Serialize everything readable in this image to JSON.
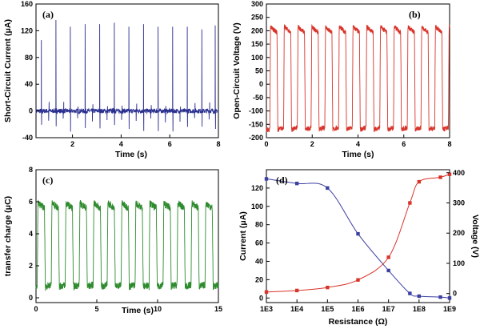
{
  "colors": {
    "panel_a": "#2a2f8f",
    "panel_b": "#d8342a",
    "panel_c": "#2e8b2e",
    "current": "#3b3fa0",
    "voltage": "#d8342a"
  },
  "chart_data": [
    {
      "type": "line",
      "panel_label": "(a)",
      "xlabel": "Time (s)",
      "ylabel": "Short-Circuit Current (μA)",
      "xlim": [
        0.5,
        8
      ],
      "ylim": [
        -40,
        160
      ],
      "xticks": [
        2,
        4,
        6,
        8
      ],
      "xtick_labels": [
        "2",
        "4",
        "6",
        "8"
      ],
      "yticks": [
        -40,
        0,
        40,
        80,
        120,
        160
      ],
      "ytick_labels": [
        "-40",
        "0",
        "40",
        "80",
        "120",
        "160"
      ],
      "series": [
        {
          "peak_times": [
            0.72,
            1.32,
            1.91,
            2.52,
            3.12,
            3.72,
            4.32,
            4.92,
            5.52,
            6.12,
            6.72,
            7.32,
            7.87
          ],
          "peak_values": [
            106,
            136,
            126,
            130,
            130,
            132,
            126,
            130,
            126,
            126,
            126,
            122,
            128
          ],
          "baseline": 0,
          "dip_value": -25
        }
      ],
      "grid": false
    },
    {
      "type": "line",
      "panel_label": "(b)",
      "xlabel": "Time (s)",
      "ylabel": "Open-Circuit Voltage (V)",
      "xlim": [
        0,
        8
      ],
      "ylim": [
        -200,
        300
      ],
      "xticks": [
        0,
        2,
        4,
        6,
        8
      ],
      "xtick_labels": [
        "0",
        "2",
        "4",
        "6",
        "8"
      ],
      "yticks": [
        -200,
        -150,
        -100,
        -50,
        0,
        50,
        100,
        150,
        200,
        250,
        300
      ],
      "ytick_labels": [
        "-200",
        "-150",
        "-100",
        "-50",
        "0",
        "50",
        "100",
        "150",
        "200",
        "250",
        "300"
      ],
      "series": [
        {
          "period_s": 0.6,
          "cycles": 13,
          "start_s": 0.15,
          "high_value": 215,
          "low_value": -170
        }
      ],
      "grid": false
    },
    {
      "type": "line",
      "panel_label": "(c)",
      "xlabel": "Time (s)",
      "ylabel": "transfer charge (μC)",
      "xlim": [
        0,
        15
      ],
      "ylim": [
        -0.3,
        8
      ],
      "xticks": [
        0,
        5,
        10,
        15
      ],
      "xtick_labels": [
        "0",
        "5",
        "10",
        "15"
      ],
      "yticks": [
        0,
        2,
        4,
        6,
        8
      ],
      "ytick_labels": [
        "0",
        "2",
        "4",
        "6",
        "8"
      ],
      "series": [
        {
          "period_s": 1.15,
          "cycles": 13,
          "start_s": 0.1,
          "high_value": 5.9,
          "low_value": 0.7
        }
      ],
      "grid": false
    },
    {
      "type": "line",
      "panel_label": "(d)",
      "xlabel": "Resistance (Ω)",
      "ylabel_left": "Current (μA)",
      "ylabel_right": "Voltage (V)",
      "x_scale": "log",
      "xlim": [
        1000,
        1000000000
      ],
      "xticks": [
        1000,
        10000,
        100000,
        1000000,
        10000000,
        100000000,
        1000000000
      ],
      "xtick_labels": [
        "1E3",
        "1E4",
        "1E5",
        "1E6",
        "1E7",
        "1E8",
        "1E9"
      ],
      "ylim_left": [
        -5,
        140
      ],
      "yticks_left": [
        0,
        20,
        40,
        60,
        80,
        100,
        120
      ],
      "ytick_labels_left": [
        "0",
        "20",
        "40",
        "60",
        "80",
        "100",
        "120"
      ],
      "ylim_right": [
        -30,
        410
      ],
      "yticks_right": [
        0,
        100,
        200,
        300,
        400
      ],
      "ytick_labels_right": [
        "0",
        "100",
        "200",
        "300",
        "400"
      ],
      "series": [
        {
          "axis": "left",
          "color_key": "current",
          "x": [
            1000,
            10000,
            100000,
            1000000,
            10000000,
            50000000,
            100000000,
            500000000,
            1000000000
          ],
          "y": [
            130,
            125,
            120,
            70,
            30,
            5,
            2,
            1,
            0
          ]
        },
        {
          "axis": "right",
          "color_key": "voltage",
          "x": [
            1000,
            10000,
            100000,
            1000000,
            10000000,
            50000000,
            100000000,
            500000000,
            1000000000
          ],
          "y": [
            5,
            10,
            20,
            45,
            120,
            300,
            370,
            385,
            395
          ]
        }
      ],
      "grid": false
    }
  ]
}
